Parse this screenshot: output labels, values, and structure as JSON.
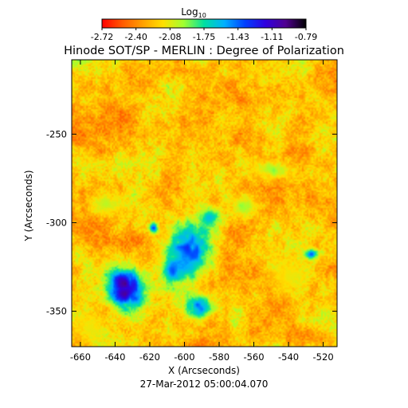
{
  "colorbar": {
    "label": "Log",
    "label_subscript": "10",
    "tick_labels": [
      "-2.72",
      "-2.40",
      "-2.08",
      "-1.75",
      "-1.43",
      "-1.11",
      "-0.79"
    ],
    "colors": [
      "#ff0000",
      "#ff5a00",
      "#ffa000",
      "#ffe000",
      "#a0ff30",
      "#00e0a0",
      "#00b0ff",
      "#0040ff",
      "#3000e0",
      "#500090",
      "#000000"
    ]
  },
  "title": "Hinode SOT/SP - MERLIN : Degree of Polarization",
  "timestamp": "27-Mar-2012 05:00:04.070",
  "chart_data": {
    "type": "heatmap",
    "title": "Hinode SOT/SP - MERLIN : Degree of Polarization",
    "xlabel": "X (Arcseconds)",
    "ylabel": "Y (Arcseconds)",
    "xlim": [
      -665,
      -512
    ],
    "ylim": [
      -370,
      -208
    ],
    "x_ticks": [
      -660,
      -640,
      -620,
      -600,
      -580,
      -560,
      -540,
      -520
    ],
    "x_tick_labels": [
      "-660",
      "-640",
      "-620",
      "-600",
      "-580",
      "-560",
      "-540",
      "-520"
    ],
    "y_ticks": [
      -350,
      -300,
      -250
    ],
    "y_tick_labels": [
      "-350",
      "-300",
      "-250"
    ],
    "value_range": [
      -2.72,
      -0.79
    ],
    "value_scale": "log10",
    "features": [
      {
        "x": -634,
        "y": -337,
        "rx": 12,
        "ry": 12,
        "value": -0.9
      },
      {
        "x": -598,
        "y": -316,
        "rx": 14,
        "ry": 18,
        "value": -1.3
      },
      {
        "x": -592,
        "y": -348,
        "rx": 8,
        "ry": 7,
        "value": -1.4
      },
      {
        "x": -618,
        "y": -303,
        "rx": 3,
        "ry": 3,
        "value": -1.2
      },
      {
        "x": -527,
        "y": -318,
        "rx": 4,
        "ry": 3,
        "value": -1.3
      },
      {
        "x": -607,
        "y": -328,
        "rx": 5,
        "ry": 6,
        "value": -1.4
      },
      {
        "x": -585,
        "y": -297,
        "rx": 6,
        "ry": 5,
        "value": -1.6
      },
      {
        "x": -565,
        "y": -290,
        "rx": 7,
        "ry": 6,
        "value": -1.9
      },
      {
        "x": -550,
        "y": -270,
        "rx": 12,
        "ry": 5,
        "value": -1.9
      },
      {
        "x": -645,
        "y": -290,
        "rx": 10,
        "ry": 6,
        "value": -2.0
      },
      {
        "x": -655,
        "y": -360,
        "rx": 8,
        "ry": 8,
        "value": -2.1
      },
      {
        "x": -540,
        "y": -330,
        "rx": 10,
        "ry": 10,
        "value": -2.1
      }
    ]
  }
}
